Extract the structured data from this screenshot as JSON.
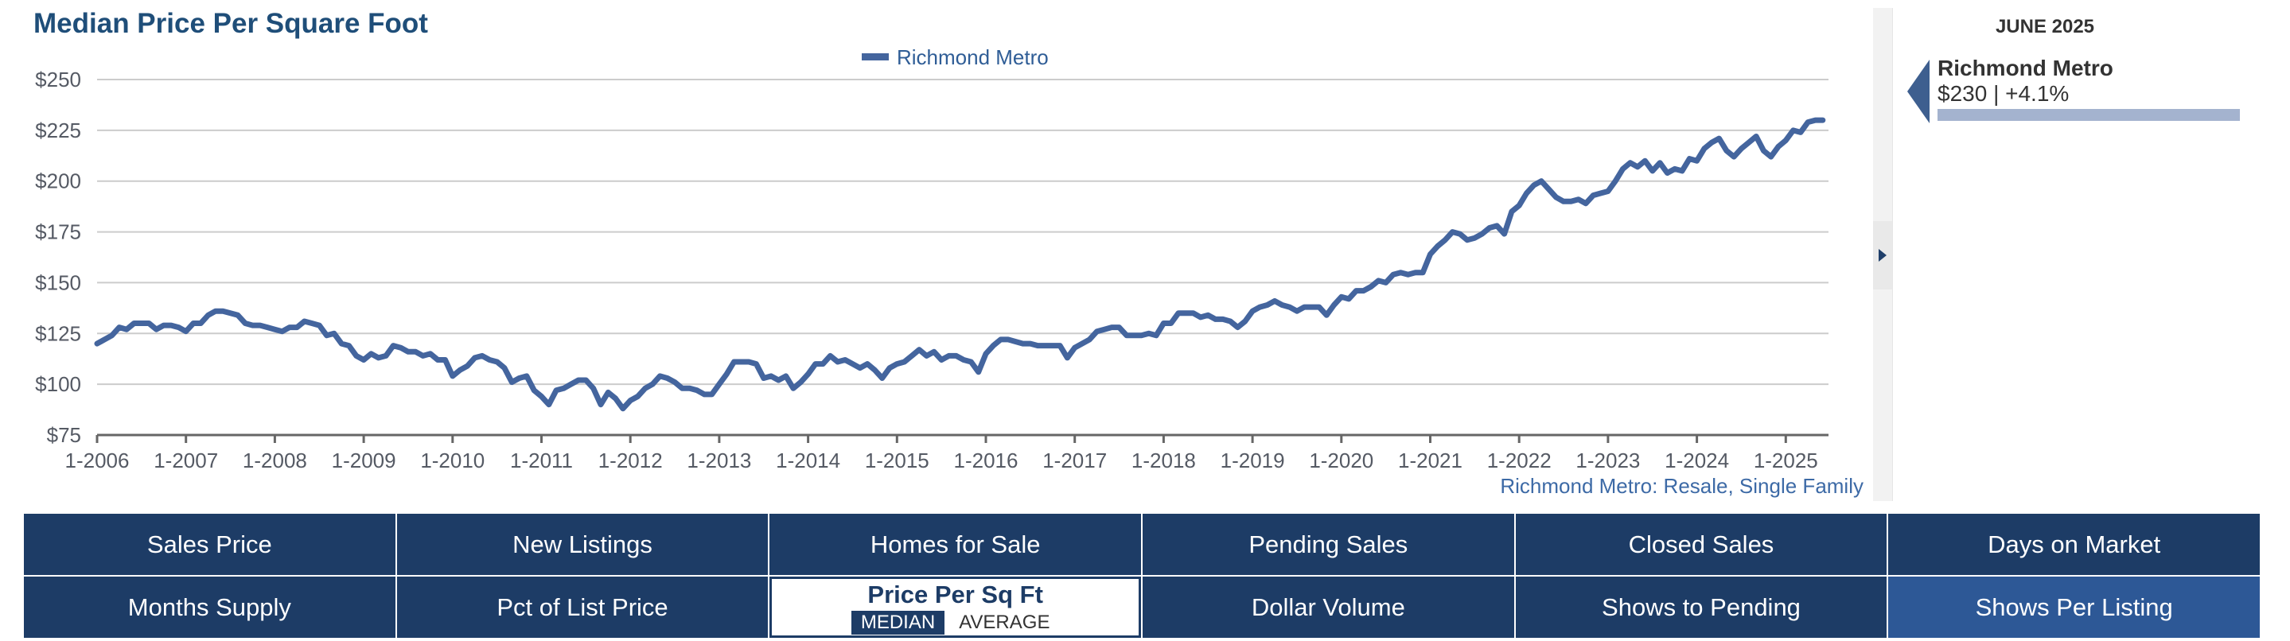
{
  "title": "Median Price Per Square Foot",
  "summary": {
    "date": "JUNE 2025",
    "region": "Richmond Metro",
    "value": "$230 | +4.1%"
  },
  "source_note": "Richmond Metro: Resale, Single Family",
  "colors": {
    "line": "#44659e",
    "nav_bg": "#1d3c66",
    "nav_alt": "#2d5896",
    "title": "#1f4e79"
  },
  "nav": {
    "row1": [
      "Sales Price",
      "New Listings",
      "Homes for Sale",
      "Pending Sales",
      "Closed Sales",
      "Days on Market"
    ],
    "row2_left": [
      "Months Supply",
      "Pct of List Price"
    ],
    "active": {
      "label": "Price Per Sq Ft",
      "median": "MEDIAN",
      "average": "AVERAGE"
    },
    "row2_right": [
      "Dollar Volume",
      "Shows to Pending",
      "Shows Per Listing"
    ]
  },
  "chart_data": {
    "type": "line",
    "title": "Median Price Per Square Foot",
    "legend": "top-center",
    "grid": true,
    "ylim": [
      75,
      250
    ],
    "y_ticks": [
      75,
      100,
      125,
      150,
      175,
      200,
      225,
      250
    ],
    "y_tick_labels": [
      "$75",
      "$100",
      "$125",
      "$150",
      "$175",
      "$200",
      "$225",
      "$250"
    ],
    "x_tick_labels": [
      "1-2006",
      "1-2007",
      "1-2008",
      "1-2009",
      "1-2010",
      "1-2011",
      "1-2012",
      "1-2013",
      "1-2014",
      "1-2015",
      "1-2016",
      "1-2017",
      "1-2018",
      "1-2019",
      "1-2020",
      "1-2021",
      "1-2022",
      "1-2023",
      "1-2024",
      "1-2025"
    ],
    "x_start": "2006-01",
    "x_end": "2025-06",
    "series": [
      {
        "name": "Richmond Metro",
        "values": [
          120,
          122,
          124,
          128,
          127,
          130,
          130,
          130,
          127,
          129,
          129,
          128,
          126,
          130,
          130,
          134,
          136,
          136,
          135,
          134,
          130,
          129,
          129,
          128,
          127,
          126,
          128,
          128,
          131,
          130,
          129,
          124,
          125,
          120,
          119,
          114,
          112,
          115,
          113,
          114,
          119,
          118,
          116,
          116,
          114,
          115,
          112,
          112,
          104,
          107,
          109,
          113,
          114,
          112,
          111,
          108,
          101,
          103,
          104,
          97,
          94,
          90,
          97,
          98,
          100,
          102,
          102,
          98,
          90,
          96,
          93,
          88,
          92,
          94,
          98,
          100,
          104,
          103,
          101,
          98,
          98,
          97,
          95,
          95,
          100,
          105,
          111,
          111,
          111,
          110,
          103,
          104,
          102,
          104,
          98,
          101,
          105,
          110,
          110,
          114,
          111,
          112,
          110,
          108,
          110,
          107,
          103,
          108,
          110,
          111,
          114,
          117,
          114,
          116,
          112,
          114,
          114,
          112,
          111,
          106,
          115,
          119,
          122,
          122,
          121,
          120,
          120,
          119,
          119,
          119,
          119,
          113,
          118,
          120,
          122,
          126,
          127,
          128,
          128,
          124,
          124,
          124,
          125,
          124,
          130,
          130,
          135,
          135,
          135,
          133,
          134,
          132,
          132,
          131,
          128,
          131,
          136,
          138,
          139,
          141,
          139,
          138,
          136,
          138,
          138,
          138,
          134,
          139,
          143,
          142,
          146,
          146,
          148,
          151,
          150,
          154,
          155,
          154,
          155,
          155,
          164,
          168,
          171,
          175,
          174,
          171,
          172,
          174,
          177,
          178,
          174,
          185,
          188,
          194,
          198,
          200,
          196,
          192,
          190,
          190,
          191,
          189,
          193,
          194,
          195,
          200,
          206,
          209,
          207,
          210,
          205,
          209,
          204,
          206,
          205,
          211,
          210,
          216,
          219,
          221,
          215,
          212,
          216,
          219,
          222,
          215,
          212,
          217,
          220,
          225,
          224,
          229,
          230,
          230
        ]
      }
    ]
  }
}
